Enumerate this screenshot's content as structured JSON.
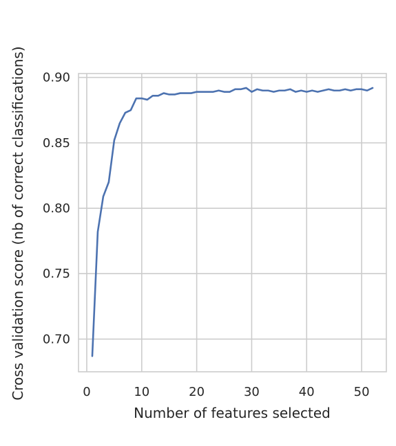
{
  "chart_data": {
    "type": "line",
    "title": "",
    "xlabel": "Number of features selected",
    "ylabel": "Cross validation score (nb of correct classifications)",
    "xlim": [
      -1.5,
      54.5
    ],
    "ylim": [
      0.675,
      0.903
    ],
    "xticks": [
      0,
      10,
      20,
      30,
      40,
      50
    ],
    "yticks": [
      0.7,
      0.75,
      0.8,
      0.85,
      0.9
    ],
    "xtick_labels": [
      "0",
      "10",
      "20",
      "30",
      "40",
      "50"
    ],
    "ytick_labels": [
      "0.70",
      "0.75",
      "0.80",
      "0.85",
      "0.90"
    ],
    "grid": true,
    "x": [
      1,
      2,
      3,
      4,
      5,
      6,
      7,
      8,
      9,
      10,
      11,
      12,
      13,
      14,
      15,
      16,
      17,
      18,
      19,
      20,
      21,
      22,
      23,
      24,
      25,
      26,
      27,
      28,
      29,
      30,
      31,
      32,
      33,
      34,
      35,
      36,
      37,
      38,
      39,
      40,
      41,
      42,
      43,
      44,
      45,
      46,
      47,
      48,
      49,
      50,
      51,
      52
    ],
    "series": [
      {
        "color": "#4c72b0",
        "values": [
          0.687,
          0.782,
          0.809,
          0.82,
          0.852,
          0.865,
          0.873,
          0.875,
          0.884,
          0.884,
          0.883,
          0.886,
          0.886,
          0.888,
          0.887,
          0.887,
          0.888,
          0.888,
          0.888,
          0.889,
          0.889,
          0.889,
          0.889,
          0.89,
          0.889,
          0.889,
          0.891,
          0.891,
          0.892,
          0.889,
          0.891,
          0.89,
          0.89,
          0.889,
          0.89,
          0.89,
          0.891,
          0.889,
          0.89,
          0.889,
          0.89,
          0.889,
          0.89,
          0.891,
          0.89,
          0.89,
          0.891,
          0.89,
          0.891,
          0.891,
          0.89,
          0.892
        ]
      }
    ]
  }
}
